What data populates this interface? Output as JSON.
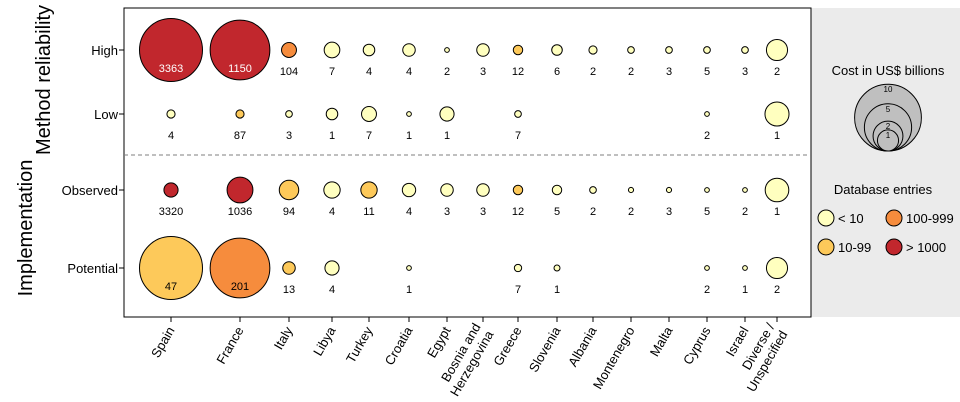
{
  "chart_data": {
    "type": "bubble",
    "countries": [
      "Spain",
      "France",
      "Italy",
      "Libya",
      "Turkey",
      "Croatia",
      "Egypt",
      "Bosnia and Herzegovina",
      "Greece",
      "Slovenia",
      "Albania",
      "Montenegro",
      "Malta",
      "Cyprus",
      "Israel",
      "Diverse / Unspecified"
    ],
    "facets": [
      {
        "title": "Method reliability",
        "rows": [
          "High",
          "Low"
        ]
      },
      {
        "title": "Implementation",
        "rows": [
          "Observed",
          "Potential"
        ]
      }
    ],
    "rows": [
      {
        "name": "High",
        "entries": [
          3363,
          1150,
          104,
          7,
          4,
          4,
          2,
          3,
          12,
          6,
          2,
          2,
          3,
          5,
          3,
          2
        ],
        "labels": [
          "3363",
          "1150",
          "104",
          "7",
          "4",
          "4",
          "2",
          "3",
          "12",
          "6",
          "2",
          "2",
          "3",
          "5",
          "3",
          "2"
        ],
        "cost_billion_usd": [
          8.9,
          8.0,
          0.5,
          0.55,
          0.3,
          0.35,
          0.05,
          0.35,
          0.2,
          0.25,
          0.15,
          0.1,
          0.1,
          0.1,
          0.1,
          1.0
        ]
      },
      {
        "name": "Low",
        "entries": [
          4,
          87,
          3,
          1,
          7,
          1,
          1,
          null,
          7,
          null,
          null,
          null,
          null,
          2,
          null,
          1
        ],
        "labels": [
          "4",
          "87",
          "3",
          "1",
          "7",
          "1",
          "1",
          "",
          "7",
          "",
          "",
          "",
          "",
          "2",
          "",
          "1"
        ],
        "cost_billion_usd": [
          0.15,
          0.15,
          0.1,
          0.3,
          0.5,
          0.05,
          0.45,
          null,
          0.1,
          null,
          null,
          null,
          null,
          0.05,
          null,
          1.3
        ]
      },
      {
        "name": "Observed",
        "entries": [
          3320,
          1036,
          94,
          4,
          11,
          4,
          3,
          3,
          12,
          5,
          2,
          2,
          3,
          5,
          2,
          1
        ],
        "labels": [
          "3320",
          "1036",
          "94",
          "4",
          "11",
          "4",
          "3",
          "3",
          "12",
          "5",
          "2",
          "2",
          "3",
          "5",
          "2",
          "1"
        ],
        "cost_billion_usd": [
          0.45,
          1.5,
          0.85,
          0.6,
          0.6,
          0.4,
          0.35,
          0.35,
          0.2,
          0.2,
          0.1,
          0.06,
          0.06,
          0.05,
          0.05,
          1.25
        ]
      },
      {
        "name": "Potential",
        "entries": [
          47,
          201,
          13,
          4,
          null,
          1,
          null,
          null,
          7,
          1,
          null,
          null,
          null,
          2,
          1,
          2
        ],
        "labels": [
          "47",
          "201",
          "13",
          "4",
          "",
          "1",
          "",
          "",
          "7",
          "1",
          "",
          "",
          "",
          "2",
          "1",
          "2"
        ],
        "cost_billion_usd": [
          8.9,
          8.0,
          0.35,
          0.45,
          null,
          0.05,
          null,
          null,
          0.12,
          0.08,
          null,
          null,
          null,
          0.05,
          0.05,
          1.0
        ]
      }
    ],
    "colors": {
      "<10": "#ffffbf",
      "10-99": "#fdc95a",
      "100-999": "#f68c3d",
      ">1000": "#c1272d"
    },
    "legend": {
      "size_title": "Cost in US$ billions",
      "size_values": [
        "10",
        "5",
        "2",
        "1"
      ],
      "color_title": "Database entries",
      "color_items": [
        {
          "label": "< 10",
          "key": "<10"
        },
        {
          "label": "100-999",
          "key": "100-999"
        },
        {
          "label": "10-99",
          "key": "10-99"
        },
        {
          "label": "> 1000",
          "key": ">1000"
        }
      ],
      "placement": "right"
    }
  }
}
